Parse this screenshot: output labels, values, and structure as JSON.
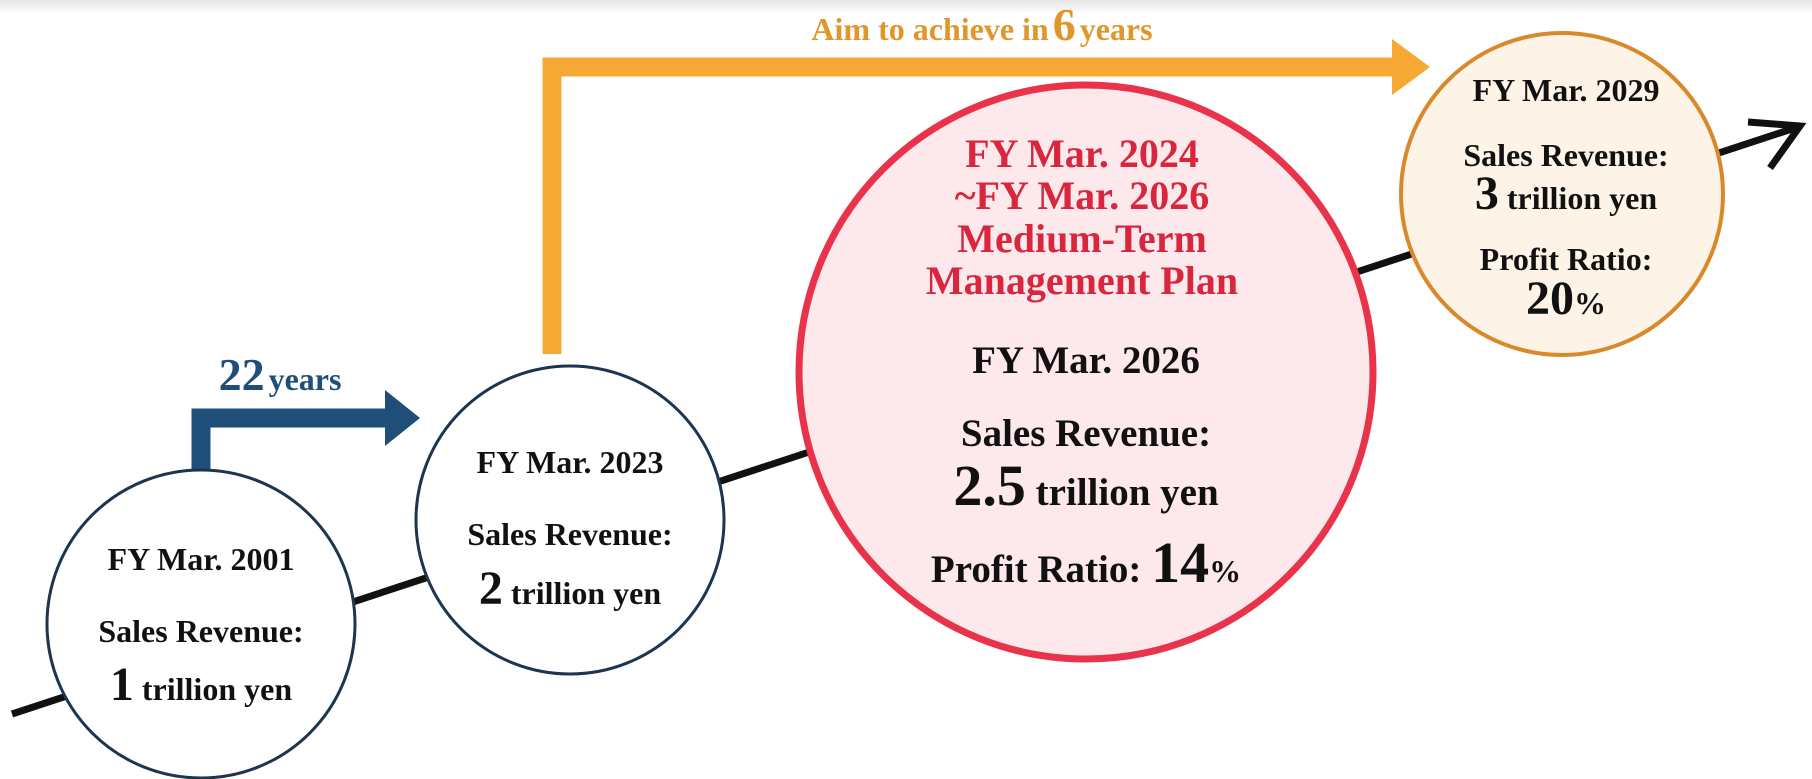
{
  "header": {
    "aim_prefix": "Aim to achieve in",
    "aim_number": "6",
    "aim_suffix": "years"
  },
  "gap": {
    "number": "22",
    "suffix": "years"
  },
  "nodes": [
    {
      "period": "FY Mar. 2001",
      "sales_label": "Sales Revenue:",
      "sales_value": "1",
      "sales_unit": "trillion yen"
    },
    {
      "period": "FY Mar. 2023",
      "sales_label": "Sales Revenue:",
      "sales_value": "2",
      "sales_unit": "trillion yen"
    },
    {
      "plan_lines": [
        "FY Mar. 2024",
        "~FY Mar. 2026",
        "Medium-Term",
        "Management Plan"
      ],
      "period": "FY Mar. 2026",
      "sales_label": "Sales Revenue:",
      "sales_value": "2.5",
      "sales_unit": "trillion yen",
      "profit_label": "Profit Ratio:",
      "profit_value": "14",
      "profit_unit": "%"
    },
    {
      "period": "FY Mar. 2029",
      "sales_label": "Sales Revenue:",
      "sales_value": "3",
      "sales_unit": "trillion yen",
      "profit_label": "Profit Ratio:",
      "profit_value": "20",
      "profit_unit": "%"
    }
  ]
}
